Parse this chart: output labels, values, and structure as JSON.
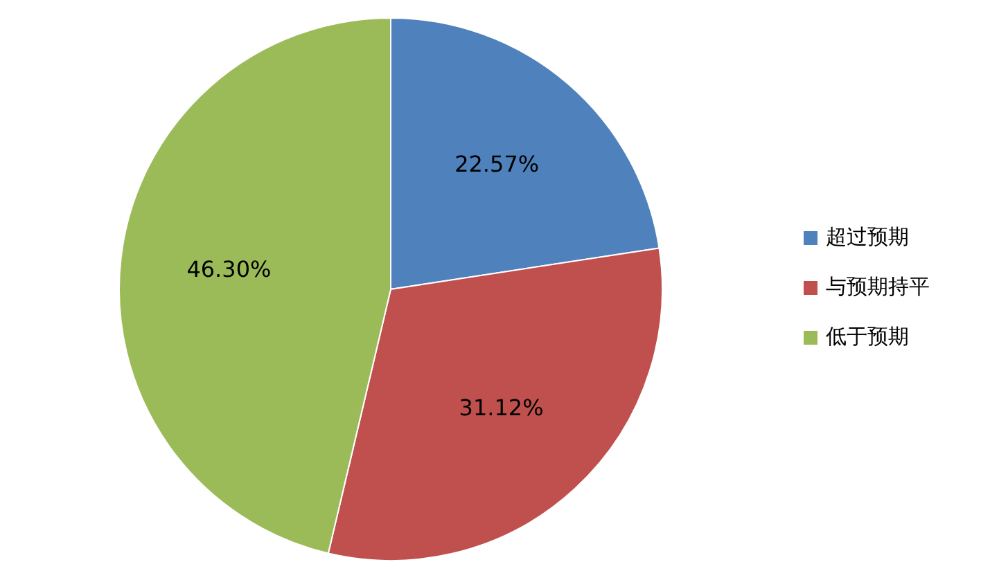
{
  "chart_data": {
    "type": "pie",
    "categories": [
      "超过预期",
      "与预期持平",
      "低于预期"
    ],
    "values": [
      22.57,
      31.12,
      46.3
    ],
    "colors": [
      "#4f81bd",
      "#c0504d",
      "#9bbb59"
    ],
    "value_labels": [
      "22.57%",
      "31.12%",
      "46.30%"
    ],
    "legend": "right"
  }
}
